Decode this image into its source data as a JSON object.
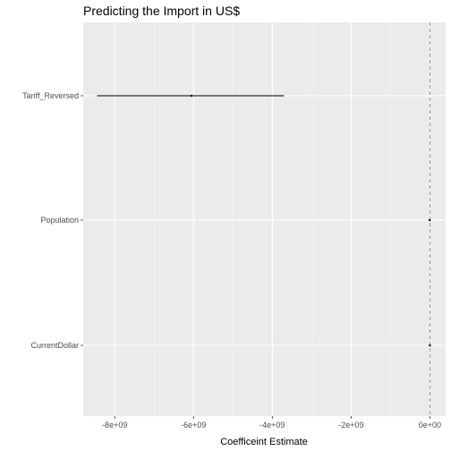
{
  "chart_data": {
    "type": "coefficient-plot",
    "title": "Predicting the Import in US$",
    "xlabel": "Coefficeint Estimate",
    "ylabel": "",
    "xlim": [
      -8800000000.0,
      400000000.0
    ],
    "x_ticks": [
      {
        "value": -8000000000.0,
        "label": "-8e+09"
      },
      {
        "value": -6000000000.0,
        "label": "-6e+09"
      },
      {
        "value": -4000000000.0,
        "label": "-4e+09"
      },
      {
        "value": -2000000000.0,
        "label": "-2e+09"
      },
      {
        "value": 0,
        "label": "0e+00"
      }
    ],
    "reference_line": {
      "value": 0,
      "style": "dashed"
    },
    "grid": true,
    "coefficients": [
      {
        "term": "Tariff_Reversed",
        "estimate": -6050000000.0,
        "lower": -8450000000.0,
        "upper": -3700000000.0
      },
      {
        "term": "Population",
        "estimate": -5000000.0,
        "lower": -10000000.0,
        "upper": 0.0
      },
      {
        "term": "CurrentDollar",
        "estimate": 0.0,
        "lower": 0.0,
        "upper": 0.0
      }
    ]
  },
  "colors": {
    "panel_background": "#ebebeb",
    "grid_major": "#ffffff",
    "grid_minor": "#f5f5f5",
    "interval": "#000000",
    "reference_line": "#7f7f7f"
  }
}
